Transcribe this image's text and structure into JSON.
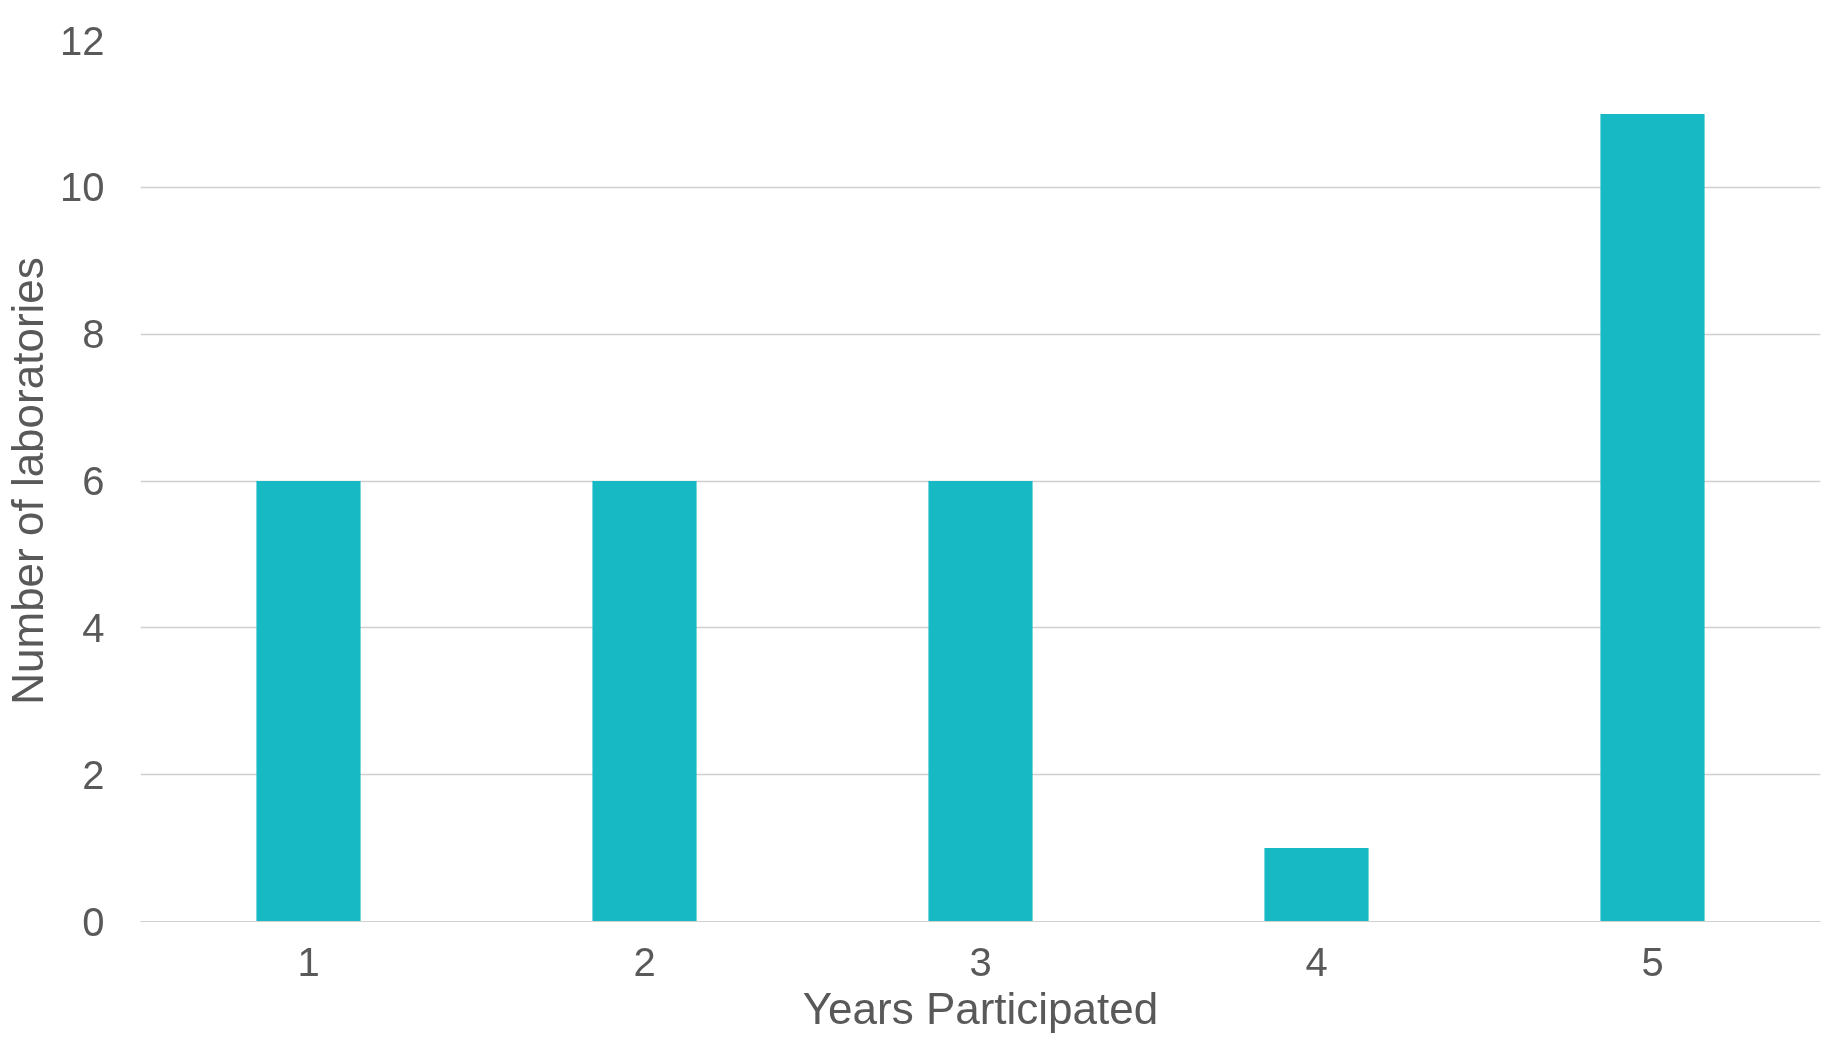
{
  "chart_data": {
    "type": "bar",
    "xlabel": "Years Participated",
    "ylabel": "Number of laboratories",
    "categories": [
      "1",
      "2",
      "3",
      "4",
      "5"
    ],
    "values": [
      6,
      6,
      6,
      1,
      11
    ],
    "color": "#17b9c4",
    "ylim": [
      0,
      12
    ],
    "yticks": [
      0,
      2,
      4,
      6,
      8,
      10,
      12
    ],
    "grid": "y"
  }
}
